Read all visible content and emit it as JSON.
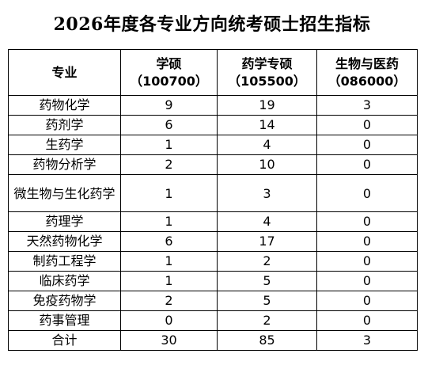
{
  "title": "2026年度各专业方向统考硕士招生指标",
  "headers": {
    "major": "专业",
    "col1_line1": "学硕",
    "col1_line2": "（100700）",
    "col2_line1": "药学专硕",
    "col2_line2": "（105500）",
    "col3_line1": "生物与医药",
    "col3_line2": "（086000）"
  },
  "rows": [
    {
      "major": "药物化学",
      "academic": "9",
      "pharmacy": "19",
      "biomed": "3"
    },
    {
      "major": "药剂学",
      "academic": "6",
      "pharmacy": "14",
      "biomed": "0"
    },
    {
      "major": "生药学",
      "academic": "1",
      "pharmacy": "4",
      "biomed": "0"
    },
    {
      "major": "药物分析学",
      "academic": "2",
      "pharmacy": "10",
      "biomed": "0"
    },
    {
      "major": "微生物与生化药学",
      "academic": "1",
      "pharmacy": "3",
      "biomed": "0"
    },
    {
      "major": "药理学",
      "academic": "1",
      "pharmacy": "4",
      "biomed": "0"
    },
    {
      "major": "天然药物化学",
      "academic": "6",
      "pharmacy": "17",
      "biomed": "0"
    },
    {
      "major": "制药工程学",
      "academic": "1",
      "pharmacy": "2",
      "biomed": "0"
    },
    {
      "major": "临床药学",
      "academic": "1",
      "pharmacy": "5",
      "biomed": "0"
    },
    {
      "major": "免疫药物学",
      "academic": "2",
      "pharmacy": "5",
      "biomed": "0"
    },
    {
      "major": "药事管理",
      "academic": "0",
      "pharmacy": "2",
      "biomed": "0"
    }
  ],
  "total": {
    "major": "合计",
    "academic": "30",
    "pharmacy": "85",
    "biomed": "3"
  }
}
